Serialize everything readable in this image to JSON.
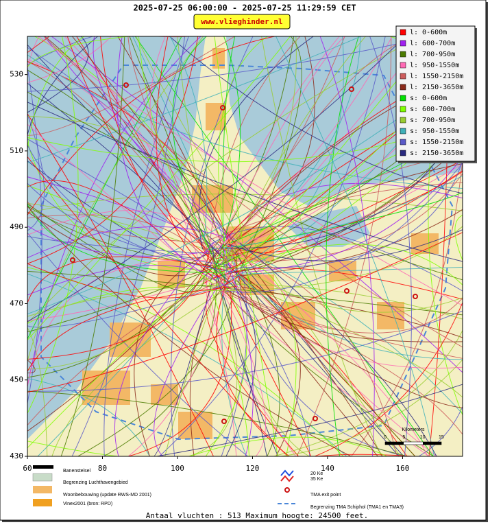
{
  "header": {
    "title": "2025-07-25 06:00:00 - 2025-07-25 11:29:59 CET",
    "site": "www.vlieghinder.nl"
  },
  "map": {
    "xlim": [
      60,
      176
    ],
    "ylim": [
      430,
      540
    ],
    "xticks": [
      60,
      80,
      100,
      120,
      140,
      160
    ],
    "yticks": [
      530,
      510,
      490,
      470,
      450,
      430
    ]
  },
  "legend": [
    {
      "label": "l: 0-600m",
      "color": "#ff0000"
    },
    {
      "label": "l: 600-700m",
      "color": "#a020f0"
    },
    {
      "label": "l: 700-950m",
      "color": "#4b7b00"
    },
    {
      "label": "l: 950-1550m",
      "color": "#ff69b4"
    },
    {
      "label": "l: 1550-2150m",
      "color": "#cd5c5c"
    },
    {
      "label": "l: 2150-3650m",
      "color": "#8b2a1a"
    },
    {
      "label": "s: 0-600m",
      "color": "#00e000"
    },
    {
      "label": "s: 600-700m",
      "color": "#80ff00"
    },
    {
      "label": "s: 700-950m",
      "color": "#9acd32"
    },
    {
      "label": "s: 950-1550m",
      "color": "#40b0b8"
    },
    {
      "label": "s: 1550-2150m",
      "color": "#5a5ac8"
    },
    {
      "label": "s: 2150-3650m",
      "color": "#2a2a80"
    }
  ],
  "scale": {
    "title": "Kilometers",
    "ticks": [
      0,
      5,
      10,
      15
    ]
  },
  "key": {
    "runways": "Banenstelsel",
    "airport_boundary": "Begrenzing Luchthavengebied",
    "housing": "Woonbebouwing (update RWS-MD 2001)",
    "vinex": "Vinex2001 (bron: RPD)",
    "ke20": "20 Ke",
    "ke35": "35 Ke",
    "tma_exit": "TMA exit point",
    "tma_boundary": "Begrenzing TMA Schiphol  (TMA1 en TMA3)"
  },
  "footer": "Antaal vluchten : 513 Maximum hoogte: 24500 feet."
}
